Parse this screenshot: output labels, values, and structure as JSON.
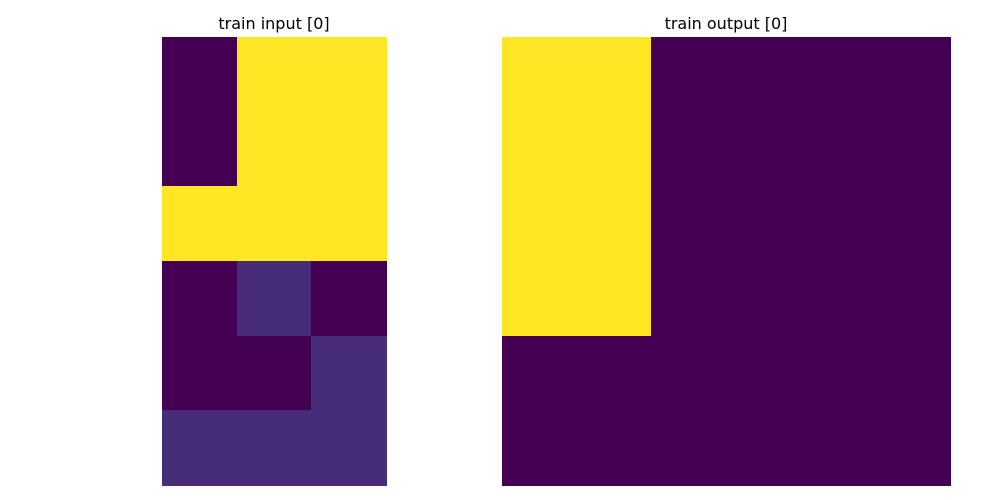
{
  "chart_data": [
    {
      "type": "heatmap",
      "title": "train input [0]",
      "rows": 6,
      "cols": 3,
      "values": [
        [
          0,
          4,
          4
        ],
        [
          0,
          4,
          4
        ],
        [
          4,
          4,
          4
        ],
        [
          0,
          1,
          0
        ],
        [
          0,
          0,
          1
        ],
        [
          1,
          1,
          1
        ]
      ],
      "grid": false,
      "axes": "off"
    },
    {
      "type": "heatmap",
      "title": "train output [0]",
      "rows": 6,
      "cols": 6,
      "values": [
        [
          4,
          4,
          0,
          0,
          0,
          0
        ],
        [
          4,
          4,
          0,
          0,
          0,
          0
        ],
        [
          4,
          4,
          0,
          0,
          0,
          0
        ],
        [
          4,
          4,
          0,
          0,
          0,
          0
        ],
        [
          0,
          0,
          0,
          0,
          0,
          0
        ],
        [
          0,
          0,
          0,
          0,
          0,
          0
        ]
      ],
      "grid": false,
      "axes": "off"
    }
  ],
  "colors": {
    "0": "#440154",
    "1": "#472c7a",
    "4": "#fde725"
  }
}
